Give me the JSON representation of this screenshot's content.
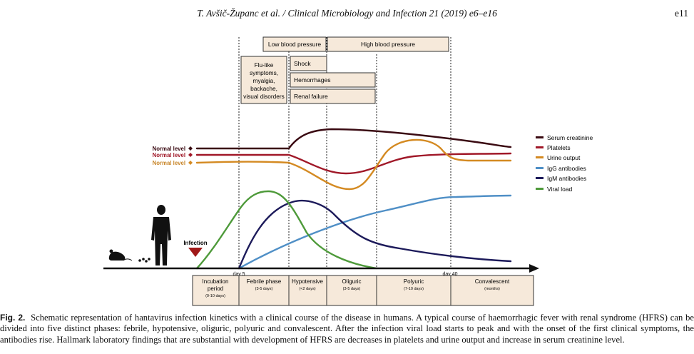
{
  "header": {
    "running_head": "T. Avšič-Županc et al. / Clinical Microbiology and Infection 21 (2019) e6–e16",
    "page_number": "e11"
  },
  "figure": {
    "bp_boxes": [
      "Low blood pressure",
      "High blood pressure"
    ],
    "flu_box": [
      "Flu-like",
      "symptoms,",
      "myalgia,",
      "backache,",
      "visual disorders"
    ],
    "symptom_boxes": [
      "Shock",
      "Hemorrhages",
      "Renal failure"
    ],
    "normal_level_label": "Normal level",
    "infection_label": "Infection",
    "day_labels": [
      "day 5",
      "day 40"
    ],
    "phases": [
      {
        "name": "Incubation",
        "name2": "period",
        "duration": "(0-10 days)"
      },
      {
        "name": "Febrile phase",
        "name2": "",
        "duration": "(3-5 days)"
      },
      {
        "name": "Hypotensive",
        "name2": "",
        "duration": "(<2 days)"
      },
      {
        "name": "Oliguric",
        "name2": "",
        "duration": "(3-5 days)"
      },
      {
        "name": "Polyuric",
        "name2": "",
        "duration": "(7-10 days)"
      },
      {
        "name": "Convalescent",
        "name2": "",
        "duration": "(months)"
      }
    ],
    "legend": [
      {
        "label": "Serum creatinine",
        "color": "#3a0a12"
      },
      {
        "label": "Platelets",
        "color": "#a01828"
      },
      {
        "label": "Urine output",
        "color": "#d48a22"
      },
      {
        "label": "IgG antibodies",
        "color": "#4f8fc6"
      },
      {
        "label": "IgM antibodies",
        "color": "#1c1a5a"
      },
      {
        "label": "Viral load",
        "color": "#4e9a3a"
      }
    ],
    "colors": {
      "box_fill": "#f6e9da",
      "triangle": "#a01818"
    }
  },
  "caption": {
    "label": "Fig. 2.",
    "text": "Schematic representation of hantavirus infection kinetics with a clinical course of the disease in humans. A typical course of haemorrhagic fever with renal syndrome (HFRS) can be divided into five distinct phases: febrile, hypotensive, oliguric, polyuric and convalescent. After the infection viral load starts to peak and with the onset of the first clinical symptoms, the antibodies rise. Hallmark laboratory findings that are substantial with development of HFRS are decreases in platelets and urine output and increase in serum creatinine level."
  }
}
